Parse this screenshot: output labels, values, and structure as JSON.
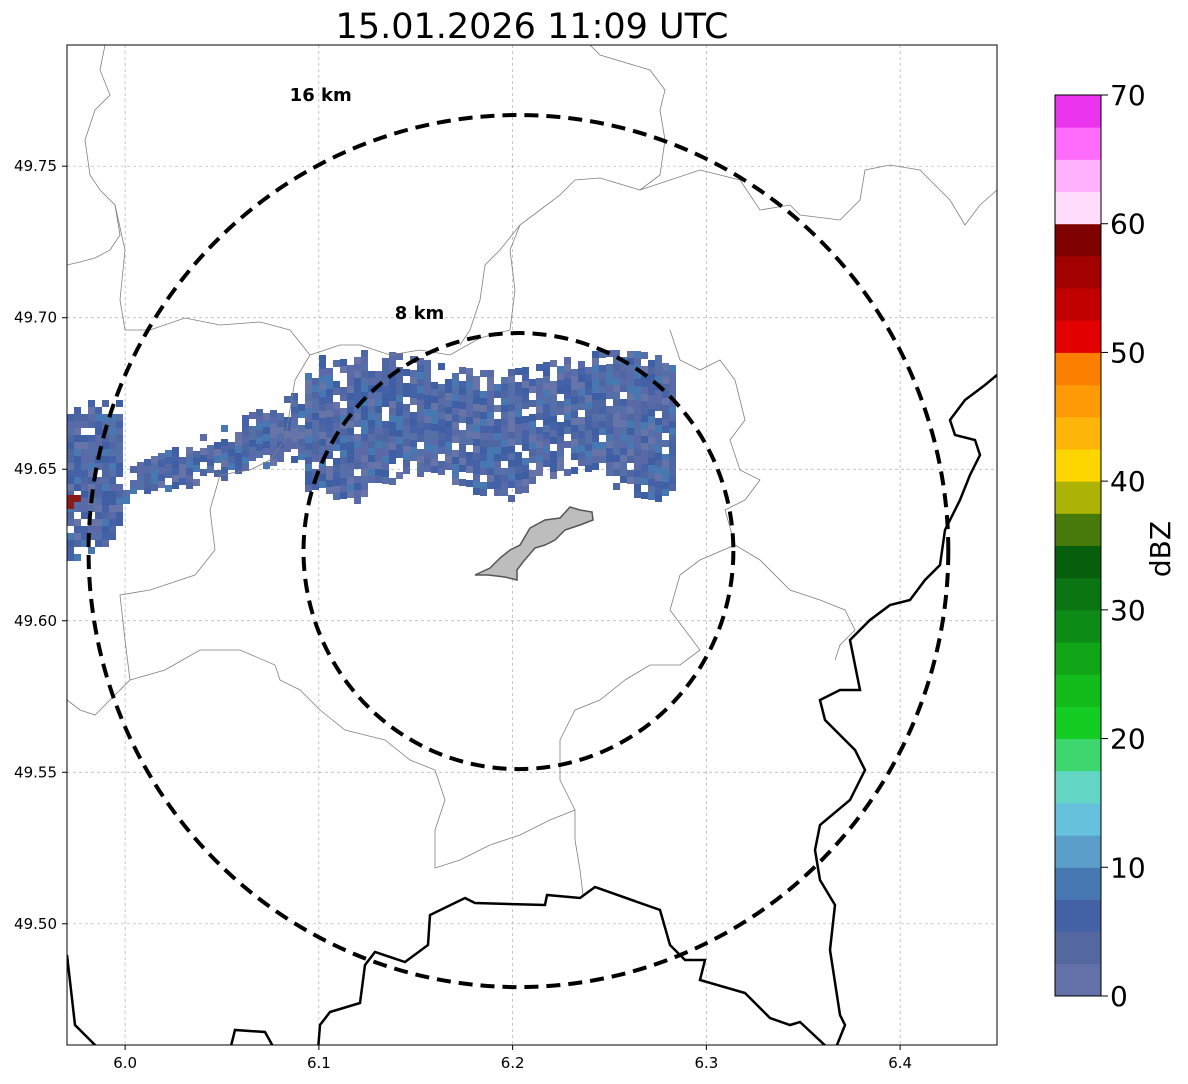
{
  "title": "15.01.2026 11:09 UTC",
  "map": {
    "lon_range": [
      5.97,
      6.45
    ],
    "lat_range": [
      49.46,
      49.79
    ],
    "x_ticks": [
      "6.0",
      "6.1",
      "6.2",
      "6.3",
      "6.4"
    ],
    "x_tick_values": [
      6.0,
      6.1,
      6.2,
      6.3,
      6.4
    ],
    "y_ticks": [
      "49.50",
      "49.55",
      "49.60",
      "49.65",
      "49.70",
      "49.75"
    ],
    "y_tick_values": [
      49.5,
      49.55,
      49.6,
      49.65,
      49.7,
      49.75
    ],
    "grid": true,
    "rings": [
      {
        "label": "8 km",
        "radius_km": 8
      },
      {
        "label": "16 km",
        "radius_km": 16
      }
    ],
    "center": {
      "lon": 6.203,
      "lat": 49.623
    }
  },
  "colorbar": {
    "label": "dBZ",
    "ticks": [
      "0",
      "10",
      "20",
      "30",
      "40",
      "50",
      "60",
      "70"
    ],
    "tick_values": [
      0,
      10,
      20,
      30,
      40,
      50,
      60,
      70
    ],
    "min": 0,
    "max": 70,
    "colors": [
      "#6471a8",
      "#55679f",
      "#4461a5",
      "#4878b1",
      "#5a9ec9",
      "#66c1dc",
      "#62d5c5",
      "#3ed66f",
      "#13cc24",
      "#12bc1a",
      "#10a517",
      "#0d8b16",
      "#0a7512",
      "#075f0e",
      "#477a0a",
      "#adb304",
      "#fdd600",
      "#fdb50a",
      "#fd9a06",
      "#fd7f00",
      "#e30000",
      "#c30000",
      "#a30000",
      "#7f0000",
      "#ffdcfb",
      "#ffb1fb",
      "#ff6cfb",
      "#ea34ee"
    ]
  },
  "colors": {
    "border_major": "#000000",
    "border_minor": "#808080",
    "city_fill": "#bdbdbd",
    "city_stroke": "#555555",
    "grid": "#b0b0b0"
  }
}
